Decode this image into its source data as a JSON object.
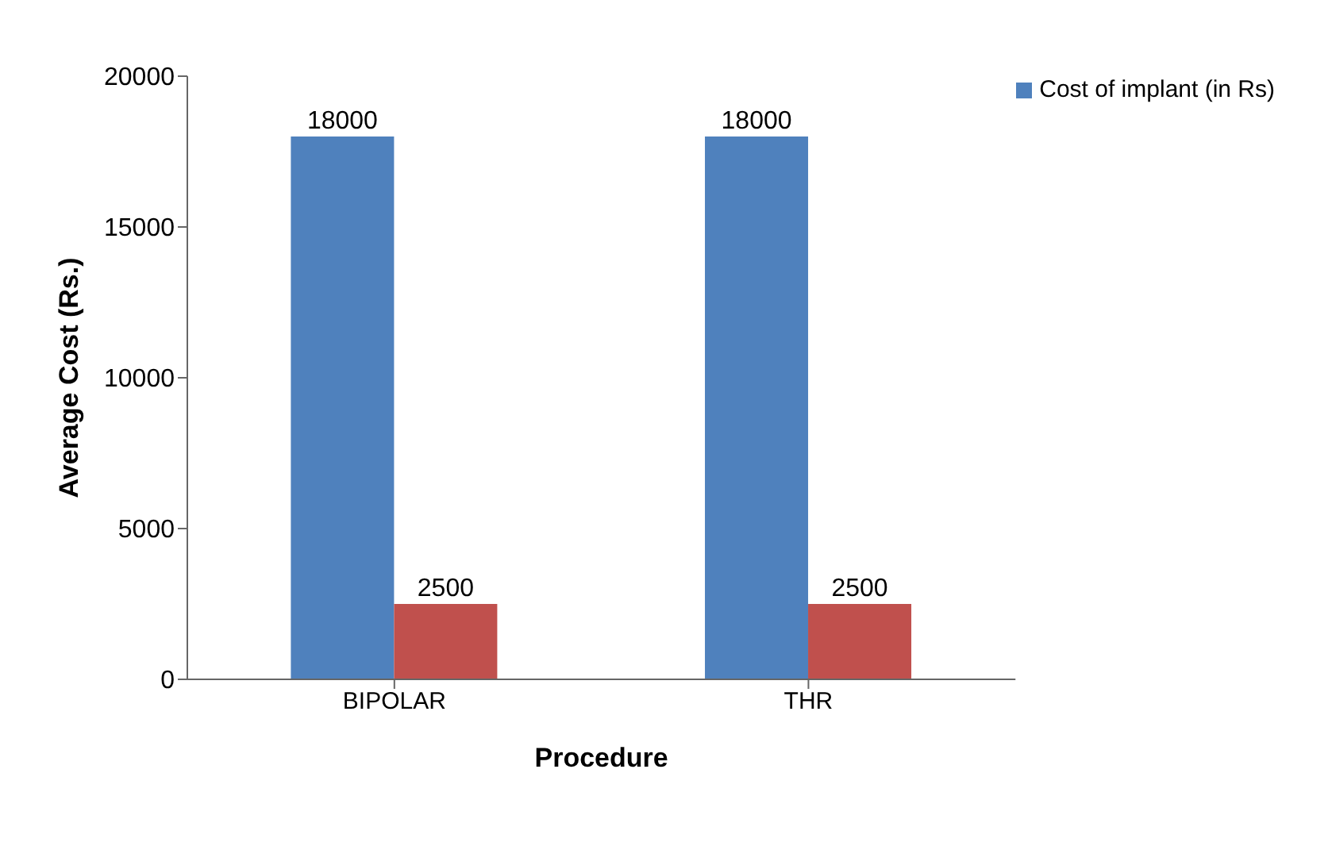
{
  "chart_data": {
    "type": "bar",
    "categories": [
      "BIPOLAR",
      "THR"
    ],
    "series": [
      {
        "name": "Cost of implant (in Rs)",
        "color": "#4f81bd",
        "values": [
          18000,
          18000
        ]
      },
      {
        "color": "#c0504d",
        "values": [
          2500,
          2500
        ]
      }
    ],
    "xlabel": "Procedure",
    "ylabel": "Average Cost (Rs.)",
    "ylim": [
      0,
      20000
    ],
    "yticks": [
      0,
      5000,
      10000,
      15000,
      20000
    ],
    "grid": false,
    "legend": "top right",
    "data_labels": true
  }
}
